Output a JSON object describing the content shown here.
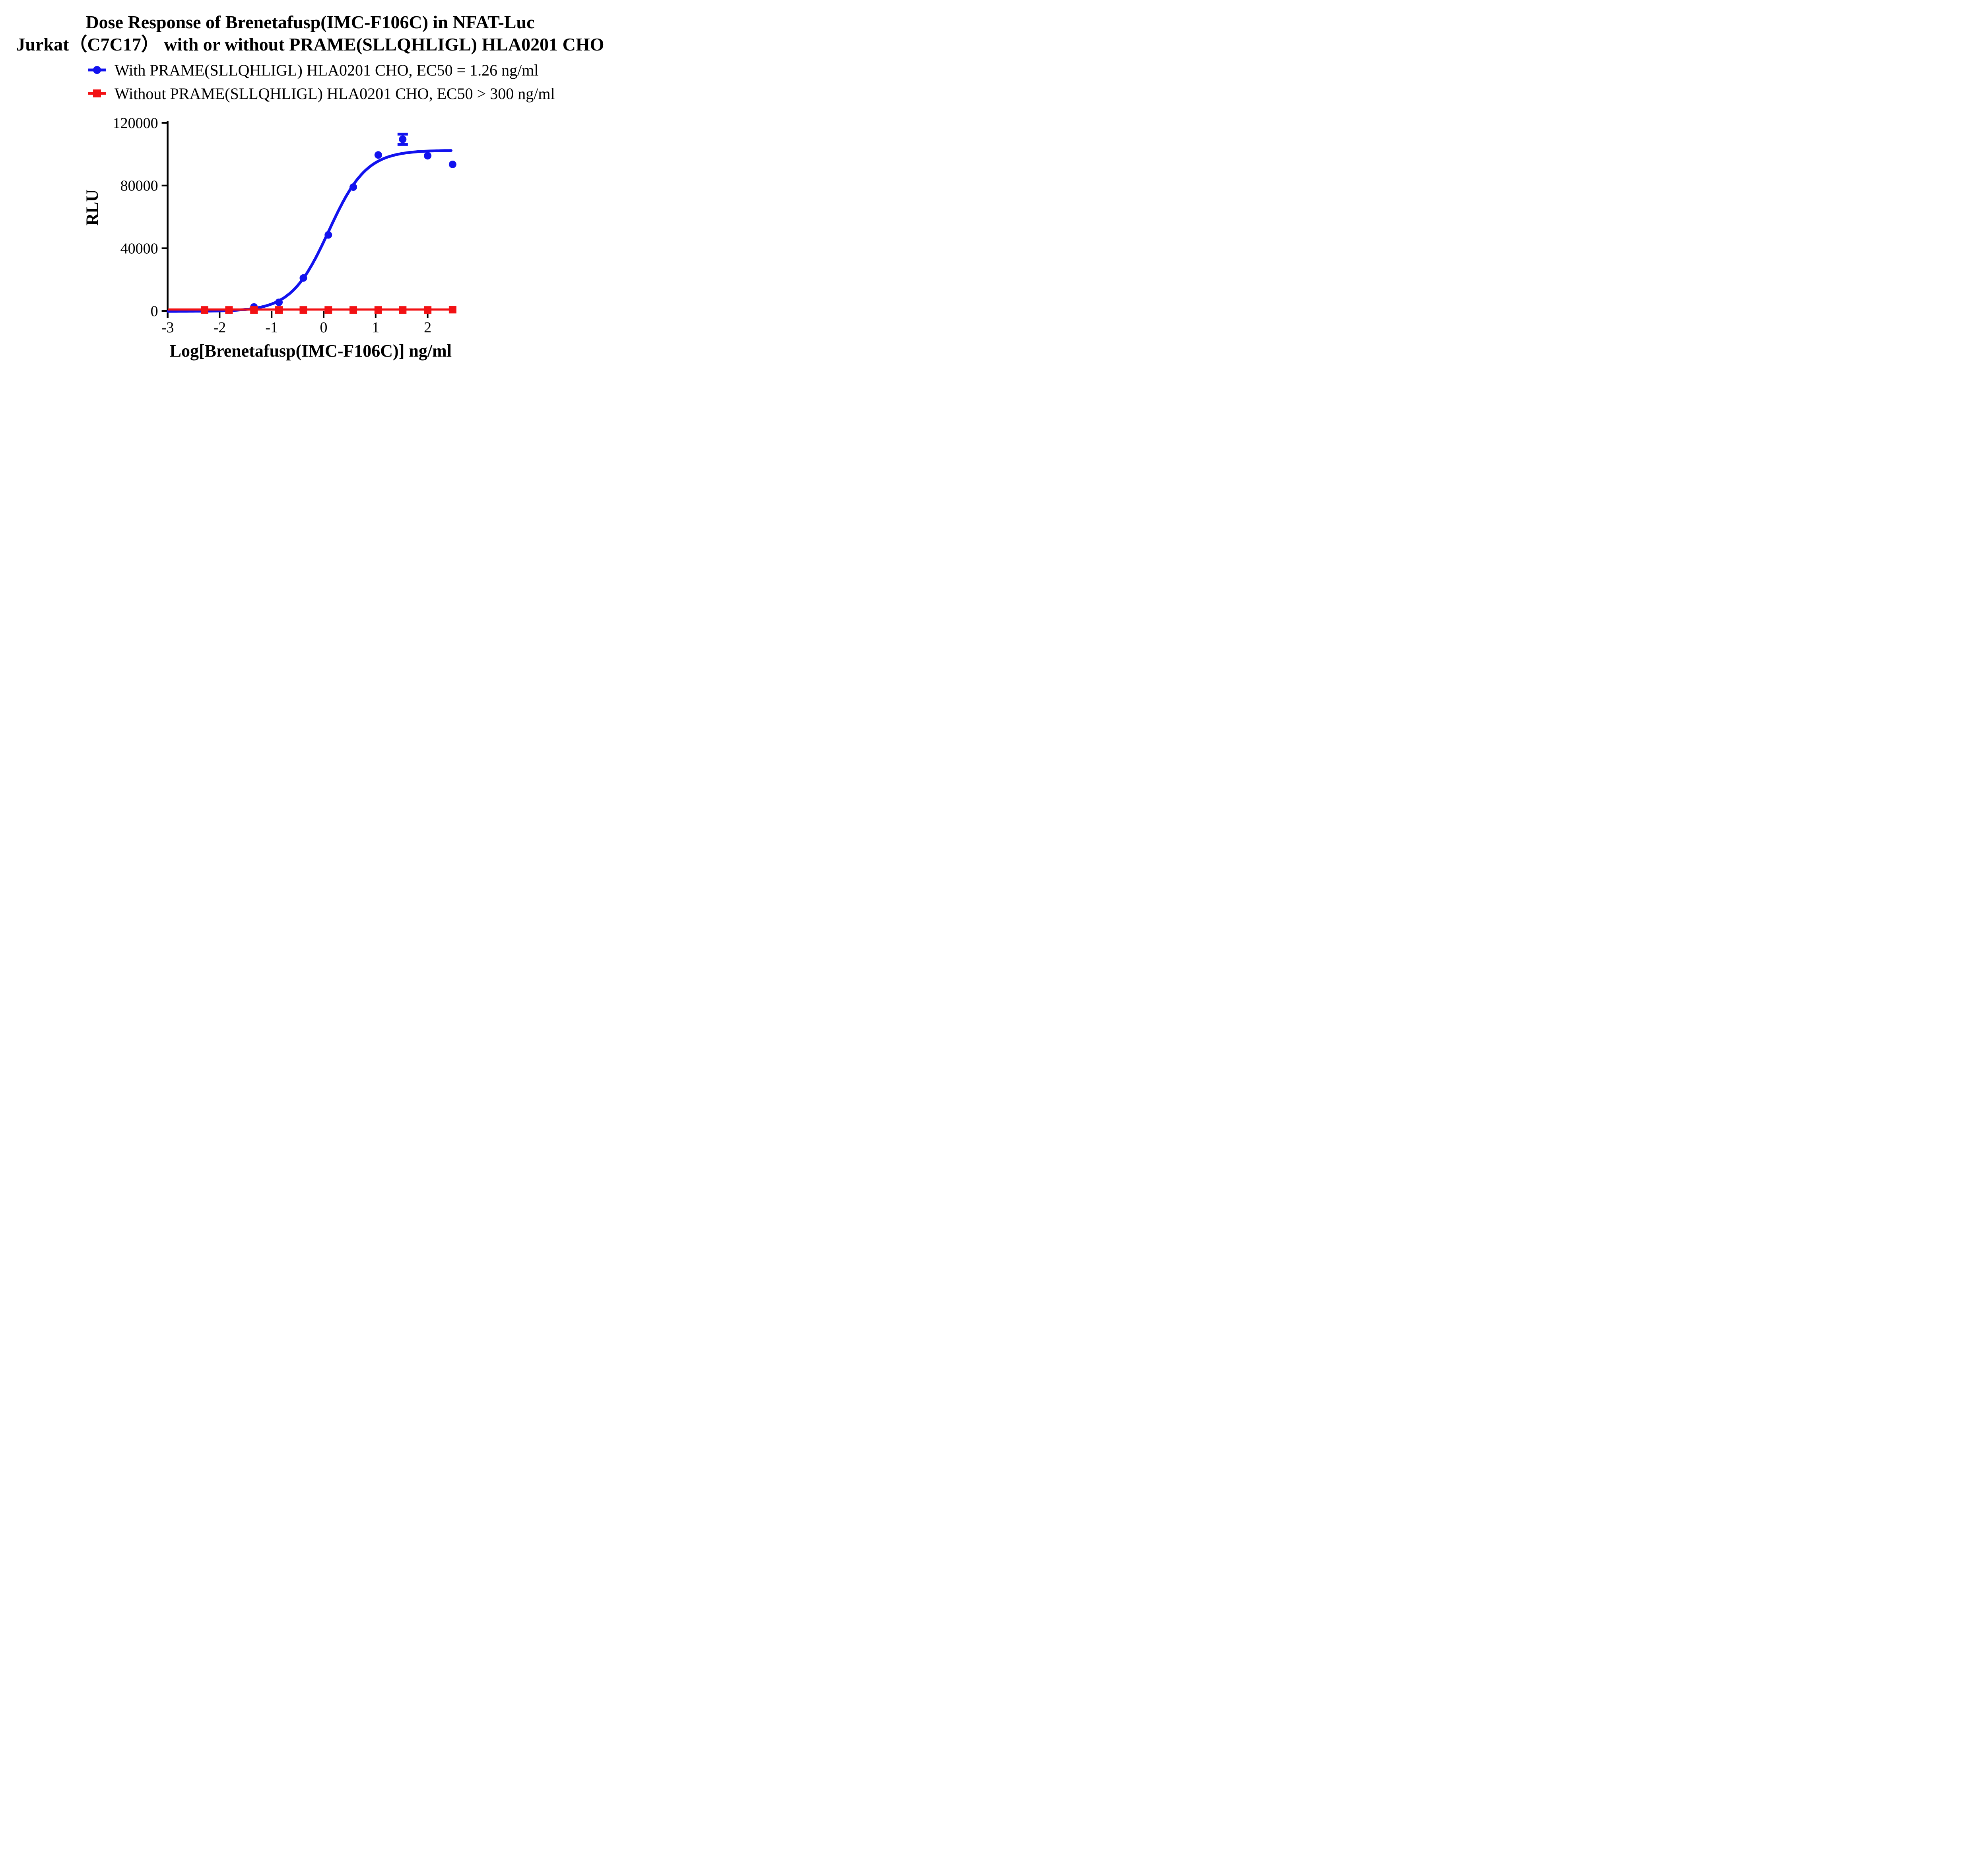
{
  "title": {
    "line1": "Dose Response of Brenetafusp(IMC-F106C) in NFAT-Luc",
    "line2": "Jurkat（C7C17） with or without PRAME(SLLQHLIGL) HLA0201 CHO"
  },
  "legend": {
    "items": [
      {
        "label": "With PRAME(SLLQHLIGL) HLA0201 CHO, EC50 = 1.26 ng/ml",
        "marker": "circle",
        "color": "#1212EE"
      },
      {
        "label": "Without PRAME(SLLQHLIGL) HLA0201 CHO, EC50 > 300 ng/ml",
        "marker": "square",
        "color": "#F21114"
      }
    ]
  },
  "axes": {
    "x": {
      "label": "Log[Brenetafusp(IMC-F106C)] ng/ml",
      "ticks": [
        -3,
        -2,
        -1,
        0,
        1,
        2
      ],
      "min": -3,
      "max": 2.5
    },
    "y": {
      "label": "RLU",
      "ticks": [
        0,
        40000,
        80000,
        120000
      ],
      "min": 0,
      "max": 120000
    }
  },
  "chart_data": {
    "type": "line",
    "title": "Dose Response of Brenetafusp(IMC-F106C) in NFAT-Luc Jurkat（C7C17） with or without PRAME(SLLQHLIGL) HLA0201 CHO",
    "xlabel": "Log[Brenetafusp(IMC-F106C)] ng/ml",
    "ylabel": "RLU",
    "xlim": [
      -3,
      2.5
    ],
    "ylim": [
      0,
      120000
    ],
    "grid": false,
    "legend_position": "top",
    "series": [
      {
        "name": "With PRAME(SLLQHLIGL) HLA0201 CHO",
        "ec50": "EC50 = 1.26 ng/ml",
        "color": "#1212EE",
        "marker": "circle",
        "x": [
          -1.34,
          -0.86,
          -0.39,
          0.09,
          0.57,
          1.05,
          1.52,
          2.0,
          2.48
        ],
        "y": [
          2500,
          5500,
          21000,
          48500,
          79000,
          99500,
          109500,
          99000,
          93500
        ],
        "error_bar": {
          "x": 1.52,
          "y": 109500,
          "plus": 3300,
          "minus": 3300
        },
        "fit_4pl": {
          "bottom": -300,
          "top": 102500,
          "log_ec50": 0.1,
          "hill": 1.2,
          "x_start": -2.99,
          "x_end": 2.45
        }
      },
      {
        "name": "Without PRAME(SLLQHLIGL) HLA0201 CHO",
        "ec50": "EC50 > 300 ng/ml",
        "color": "#F21114",
        "marker": "square",
        "x": [
          -2.29,
          -1.82,
          -1.34,
          -0.86,
          -0.39,
          0.09,
          0.57,
          1.05,
          1.52,
          2.0,
          2.48
        ],
        "y": [
          600,
          600,
          600,
          600,
          600,
          600,
          600,
          600,
          600,
          600,
          800
        ],
        "fit_flat": {
          "value": 900,
          "x_start": -2.99,
          "x_end": 2.52
        }
      }
    ]
  }
}
